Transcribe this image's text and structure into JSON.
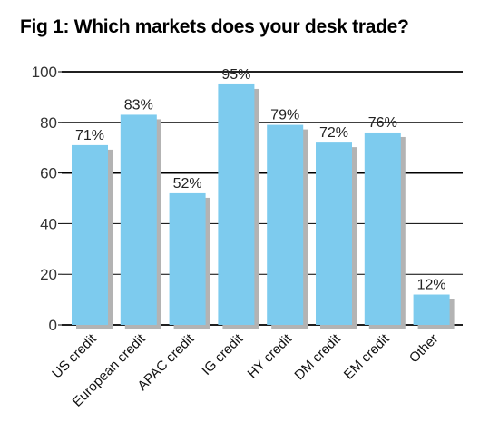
{
  "title": "Fig 1: Which markets does your desk trade?",
  "colors": {
    "bar": "#7dcbee",
    "shadow": "#b3b3b3",
    "grid": "#000000"
  },
  "chart_data": {
    "type": "bar",
    "title": "Fig 1: Which markets does your desk trade?",
    "categories": [
      "US credit",
      "European credit",
      "APAC credit",
      "IG credit",
      "HY credit",
      "DM credit",
      "EM credit",
      "Other"
    ],
    "values": [
      71,
      83,
      52,
      95,
      79,
      72,
      76,
      12
    ],
    "data_labels": [
      "71%",
      "83%",
      "52%",
      "95%",
      "79%",
      "72%",
      "76%",
      "12%"
    ],
    "yticks": [
      "0",
      "20",
      "40",
      "60",
      "80",
      "100"
    ],
    "ylim": [
      0,
      100
    ],
    "xlabel": "",
    "ylabel": "",
    "grid": true,
    "legend": "none"
  }
}
